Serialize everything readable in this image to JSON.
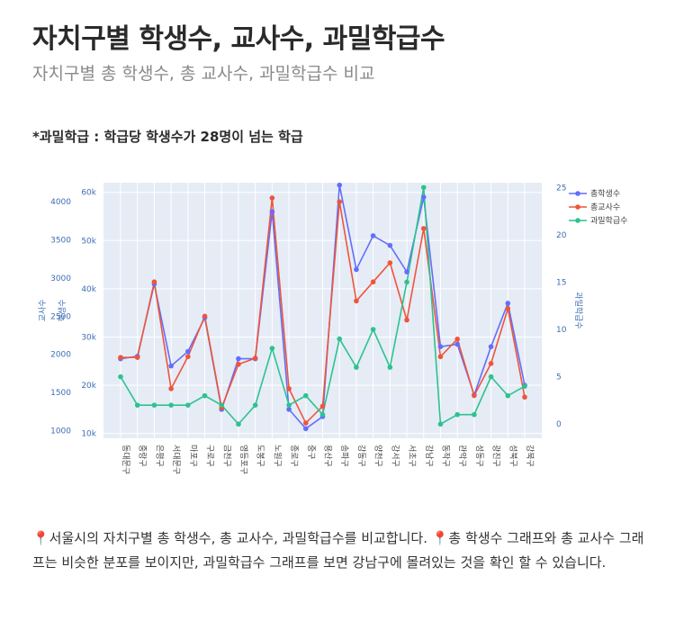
{
  "page": {
    "title": "자치구별 학생수, 교사수, 과밀학급수",
    "subtitle": "자치구별 총 학생수, 총 교사수, 과밀학급수 비교",
    "note": "*과밀학급 : 학급당 학생수가 28명이 넘는 학급",
    "description": "📍서울시의 자치구별 총 학생수, 총 교사수, 과밀학급수를 비교합니다. 📍총 학생수 그래프와 총 교사수 그래프는 비슷한 분포를 보이지만, 과밀학급수 그래프를 보면 강남구에 몰려있는 것을 확인 할 수 있습니다."
  },
  "chart_data": {
    "type": "line",
    "categories": [
      "동대문구",
      "중랑구",
      "은평구",
      "서대문구",
      "마포구",
      "구로구",
      "금천구",
      "영등포구",
      "도봉구",
      "노원구",
      "종로구",
      "중구",
      "용산구",
      "송파구",
      "강동구",
      "양천구",
      "강서구",
      "서초구",
      "강남구",
      "동작구",
      "관악구",
      "성동구",
      "광진구",
      "성북구",
      "강북구"
    ],
    "series": [
      {
        "name": "총학생수",
        "axis": "students",
        "color": "#636efa",
        "values": [
          25500,
          26000,
          41000,
          24000,
          27000,
          34000,
          15000,
          25500,
          25500,
          56000,
          15000,
          11000,
          13500,
          61500,
          44000,
          51000,
          49000,
          43500,
          59000,
          28000,
          28500,
          18000,
          28000,
          37000,
          20000
        ]
      },
      {
        "name": "총교사수",
        "axis": "teachers",
        "color": "#ef553b",
        "values": [
          1960,
          1960,
          2950,
          1550,
          1970,
          2500,
          1300,
          1870,
          1950,
          4050,
          1550,
          1100,
          1320,
          4000,
          2700,
          2950,
          3200,
          2450,
          3650,
          1970,
          2200,
          1460,
          1880,
          2600,
          1440
        ]
      },
      {
        "name": "과밀학급수",
        "axis": "classes",
        "color": "#2ec28f",
        "values": [
          5,
          2,
          2,
          2,
          2,
          3,
          2,
          0,
          2,
          8,
          2,
          3,
          1,
          9,
          6,
          10,
          6,
          15,
          25,
          0,
          1,
          1,
          5,
          3,
          4
        ]
      }
    ],
    "axes": {
      "teachers": {
        "label": "교사수",
        "range": [
          900,
          4250
        ],
        "ticks": [
          1000,
          1500,
          2000,
          2500,
          3000,
          3500,
          4000
        ]
      },
      "students": {
        "label": "학생수",
        "range": [
          9000,
          62000
        ],
        "ticks": [
          10000,
          20000,
          30000,
          40000,
          50000,
          60000
        ],
        "tick_labels": [
          "10k",
          "20k",
          "30k",
          "40k",
          "50k",
          "60k"
        ]
      },
      "classes": {
        "label": "과밀학급수",
        "range": [
          -1.5,
          25.5
        ],
        "ticks": [
          0,
          5,
          10,
          15,
          20,
          25
        ]
      }
    },
    "legend_position": "top-right",
    "grid": true,
    "colors": {
      "plot_bg": "#e5ecf6",
      "axis_text": "#3d6db5",
      "grid": "#ffffff"
    }
  }
}
